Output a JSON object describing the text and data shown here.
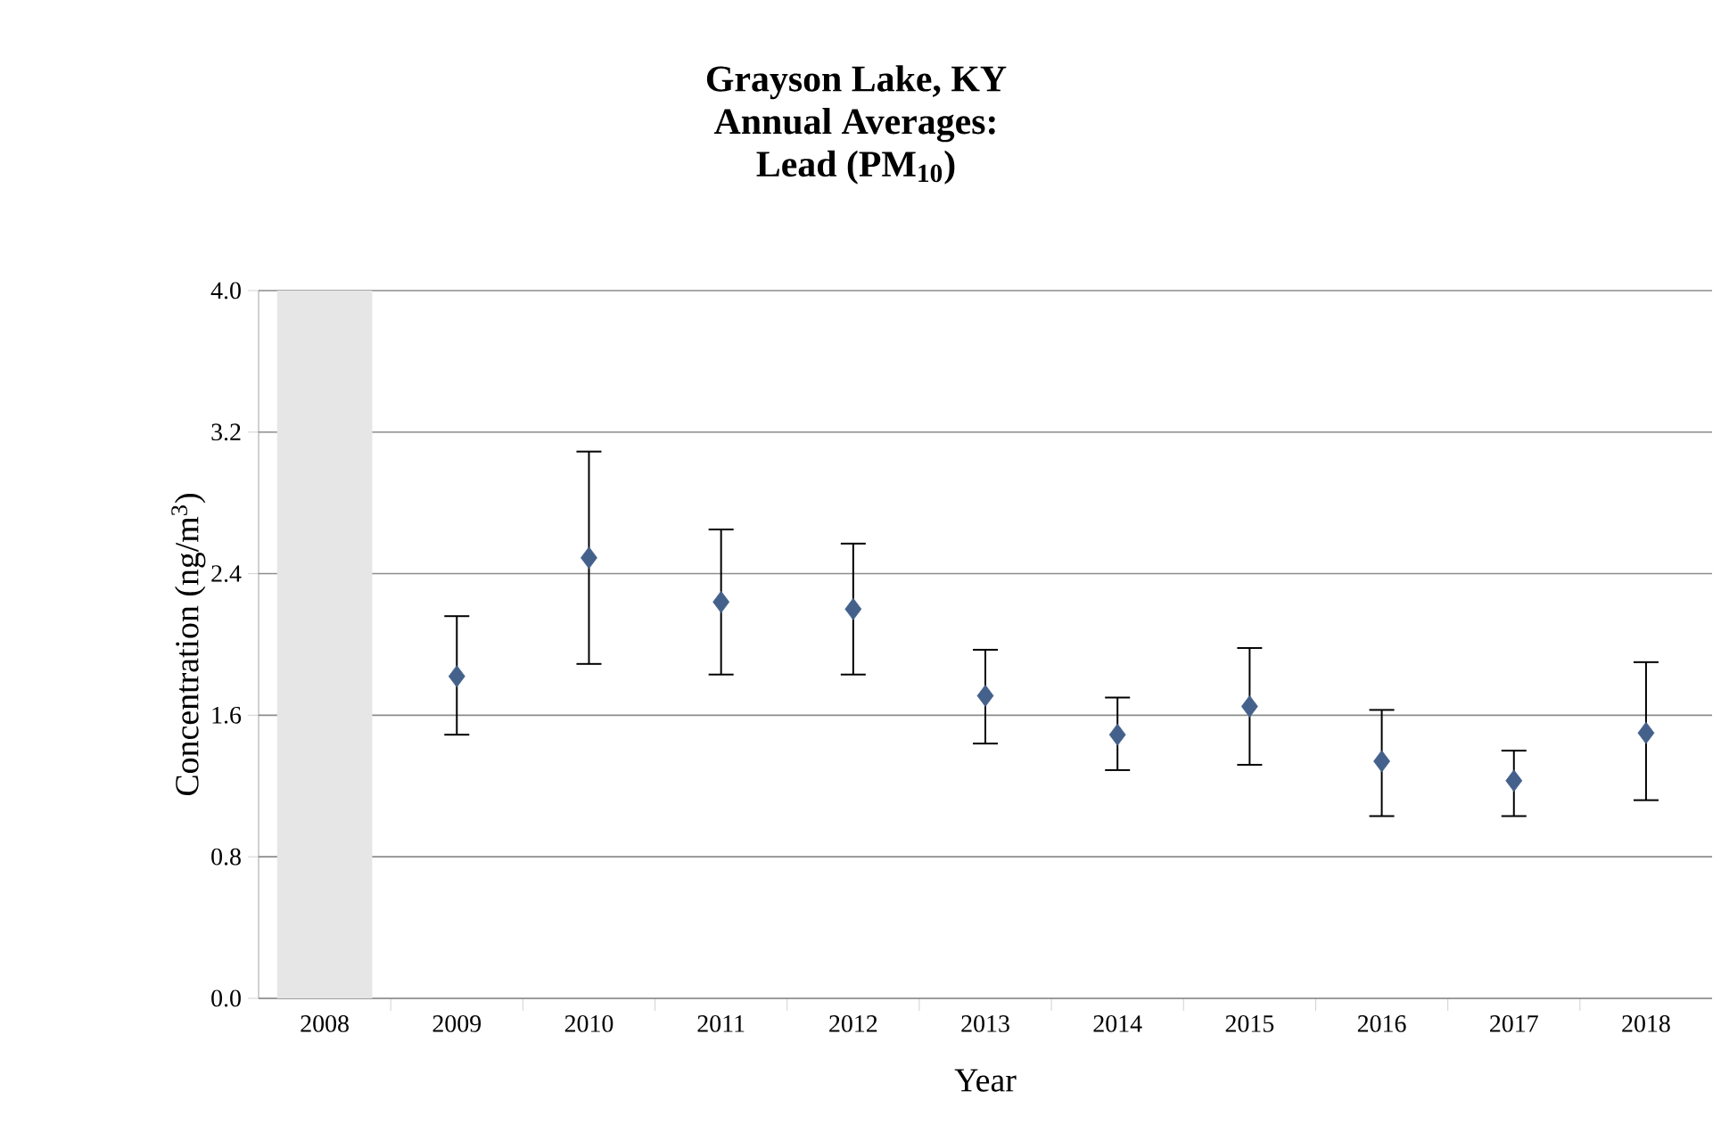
{
  "chart_data": {
    "type": "scatter",
    "title": "Grayson Lake, KY\nAnnual Averages:\nLead (PM$_{10}$)",
    "xlabel": "Year",
    "ylabel": "Concentration (ng/m$^{3}$)",
    "categories": [
      "2008",
      "2009",
      "2010",
      "2011",
      "2012",
      "2013",
      "2014",
      "2015",
      "2016",
      "2017",
      "2018"
    ],
    "values": [
      null,
      1.82,
      2.49,
      2.24,
      2.2,
      1.71,
      1.49,
      1.65,
      1.34,
      1.23,
      1.5
    ],
    "errors": [
      null,
      [
        1.49,
        2.16
      ],
      [
        1.89,
        3.09
      ],
      [
        1.83,
        2.65
      ],
      [
        1.83,
        2.57
      ],
      [
        1.44,
        1.97
      ],
      [
        1.29,
        1.7
      ],
      [
        1.32,
        1.98
      ],
      [
        1.03,
        1.63
      ],
      [
        1.03,
        1.4
      ],
      [
        1.12,
        1.9
      ]
    ],
    "color": "#44618b",
    "marker": "diamond",
    "grid": "y",
    "legend": false,
    "ylim": [
      0.0,
      4.0
    ],
    "yticks": [
      {
        "value": 0,
        "label": "0.0"
      },
      {
        "value": 0.8,
        "label": "0.8"
      },
      {
        "value": 1.6,
        "label": "1.6"
      },
      {
        "value": 2.4,
        "label": "2.4"
      },
      {
        "value": 3.2,
        "label": "3.2"
      },
      {
        "value": 4,
        "label": "4.0"
      }
    ],
    "bands": [
      {
        "axis": "x",
        "from": "2008",
        "to": "2008",
        "color": "#e6e6e6"
      }
    ]
  }
}
